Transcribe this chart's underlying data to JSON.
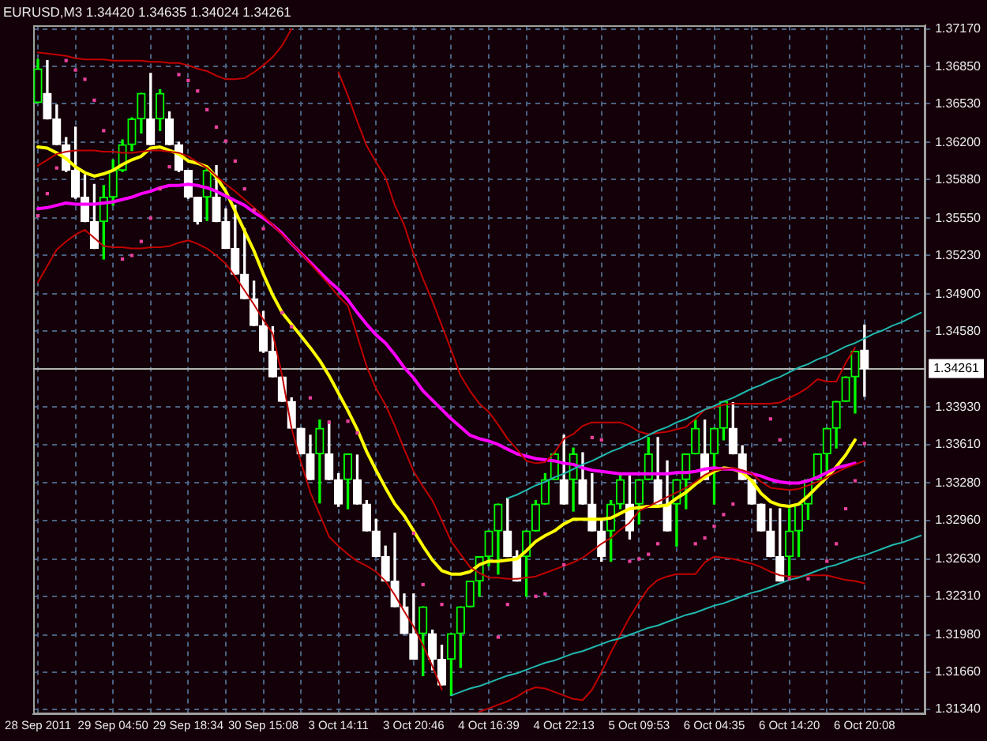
{
  "chart_data": {
    "type": "candlestick",
    "title": "EURUSD,M3 1.34420 1.34635 1.34024 1.34261",
    "categories": [
      "28 Sep 2011",
      null,
      null,
      null,
      null,
      null,
      null,
      null,
      "29 Sep 04:50",
      null,
      null,
      null,
      null,
      null,
      null,
      null,
      "29 Sep 18:34",
      null,
      null,
      null,
      null,
      null,
      null,
      null,
      "30 Sep 15:08",
      null,
      null,
      null,
      null,
      null,
      null,
      null,
      "3 Oct 14:11",
      null,
      null,
      null,
      null,
      null,
      null,
      null,
      "3 Oct 20:46",
      null,
      null,
      null,
      null,
      null,
      null,
      null,
      "4 Oct 16:39",
      null,
      null,
      null,
      null,
      null,
      null,
      null,
      "4 Oct 22:13",
      null,
      null,
      null,
      null,
      null,
      null,
      null,
      "5 Oct 09:53",
      null,
      null,
      null,
      null,
      null,
      null,
      null,
      "6 Oct 04:35",
      null,
      null,
      null,
      null,
      null,
      null,
      null,
      "6 Oct 14:20",
      null,
      null,
      null,
      null,
      null,
      null,
      null,
      "6 Oct 20:08",
      null,
      null,
      null,
      null,
      null,
      null
    ],
    "ohlc": [
      [
        1.3654,
        1.3691,
        1.3654,
        1.3683
      ],
      [
        1.3662,
        1.369,
        1.364,
        1.364
      ],
      [
        1.364,
        1.3652,
        1.3618,
        1.3618
      ],
      [
        1.3618,
        1.3624,
        1.3595,
        1.3596
      ],
      [
        1.3596,
        1.3633,
        1.3572,
        1.3573
      ],
      [
        1.3573,
        1.3592,
        1.3552,
        1.3552
      ],
      [
        1.3552,
        1.3584,
        1.3529,
        1.3529
      ],
      [
        1.3552,
        1.3583,
        1.352,
        1.3573
      ],
      [
        1.3573,
        1.3605,
        1.3566,
        1.3596
      ],
      [
        1.3596,
        1.3622,
        1.3595,
        1.3618
      ],
      [
        1.3618,
        1.3641,
        1.3613,
        1.364
      ],
      [
        1.364,
        1.3662,
        1.3628,
        1.3662
      ],
      [
        1.364,
        1.3679,
        1.3618,
        1.3618
      ],
      [
        1.364,
        1.3665,
        1.363,
        1.3662
      ],
      [
        1.364,
        1.3646,
        1.3618,
        1.3618
      ],
      [
        1.3618,
        1.362,
        1.3595,
        1.3596
      ],
      [
        1.3596,
        1.3596,
        1.3572,
        1.3573
      ],
      [
        1.3573,
        1.3573,
        1.355,
        1.3552
      ],
      [
        1.3573,
        1.3598,
        1.3553,
        1.3596
      ],
      [
        1.3573,
        1.36,
        1.3552,
        1.3552
      ],
      [
        1.3552,
        1.3563,
        1.3529,
        1.3529
      ],
      [
        1.3529,
        1.3566,
        1.3507,
        1.3507
      ],
      [
        1.3507,
        1.3546,
        1.3486,
        1.3486
      ],
      [
        1.3486,
        1.3501,
        1.3463,
        1.3463
      ],
      [
        1.3463,
        1.3475,
        1.344,
        1.3441
      ],
      [
        1.3441,
        1.3462,
        1.3419,
        1.3419
      ],
      [
        1.3419,
        1.3419,
        1.3398,
        1.3398
      ],
      [
        1.3398,
        1.3401,
        1.3375,
        1.3375
      ],
      [
        1.3375,
        1.3375,
        1.3353,
        1.3353
      ],
      [
        1.3353,
        1.3369,
        1.3331,
        1.3331
      ],
      [
        1.3353,
        1.3382,
        1.3311,
        1.3375
      ],
      [
        1.3353,
        1.3381,
        1.3331,
        1.3331
      ],
      [
        1.3331,
        1.3336,
        1.3308,
        1.331
      ],
      [
        1.3331,
        1.3353,
        1.3306,
        1.3353
      ],
      [
        1.3331,
        1.3352,
        1.331,
        1.331
      ],
      [
        1.331,
        1.3313,
        1.3287,
        1.3287
      ],
      [
        1.3287,
        1.3297,
        1.3265,
        1.3265
      ],
      [
        1.3265,
        1.3274,
        1.3244,
        1.3244
      ],
      [
        1.3244,
        1.3285,
        1.3222,
        1.3222
      ],
      [
        1.3222,
        1.3233,
        1.3199,
        1.3199
      ],
      [
        1.3199,
        1.3233,
        1.3177,
        1.3177
      ],
      [
        1.3199,
        1.3222,
        1.3163,
        1.3222
      ],
      [
        1.3199,
        1.3202,
        1.3168,
        1.3177
      ],
      [
        1.3177,
        1.3189,
        1.3155,
        1.3155
      ],
      [
        1.3177,
        1.3199,
        1.3146,
        1.3199
      ],
      [
        1.3199,
        1.3222,
        1.317,
        1.3222
      ],
      [
        1.3222,
        1.3244,
        1.3222,
        1.3244
      ],
      [
        1.3244,
        1.3265,
        1.3231,
        1.3265
      ],
      [
        1.3265,
        1.3287,
        1.3257,
        1.3287
      ],
      [
        1.3287,
        1.331,
        1.325,
        1.331
      ],
      [
        1.3287,
        1.3315,
        1.3265,
        1.3265
      ],
      [
        1.3265,
        1.327,
        1.3244,
        1.3244
      ],
      [
        1.3265,
        1.3287,
        1.3231,
        1.3287
      ],
      [
        1.3287,
        1.3313,
        1.3287,
        1.331
      ],
      [
        1.331,
        1.3336,
        1.331,
        1.3331
      ],
      [
        1.3331,
        1.3354,
        1.3331,
        1.3353
      ],
      [
        1.3331,
        1.3369,
        1.331,
        1.331
      ],
      [
        1.3331,
        1.3358,
        1.3304,
        1.3353
      ],
      [
        1.3331,
        1.3354,
        1.331,
        1.331
      ],
      [
        1.331,
        1.3336,
        1.3287,
        1.3287
      ],
      [
        1.3287,
        1.3297,
        1.3261,
        1.3265
      ],
      [
        1.3287,
        1.3313,
        1.3261,
        1.331
      ],
      [
        1.331,
        1.3336,
        1.3306,
        1.3331
      ],
      [
        1.331,
        1.3334,
        1.328,
        1.3287
      ],
      [
        1.331,
        1.3331,
        1.3293,
        1.3331
      ],
      [
        1.3331,
        1.3367,
        1.3331,
        1.3353
      ],
      [
        1.3331,
        1.3367,
        1.331,
        1.331
      ],
      [
        1.331,
        1.3347,
        1.3287,
        1.3287
      ],
      [
        1.331,
        1.3331,
        1.3274,
        1.3331
      ],
      [
        1.3331,
        1.3353,
        1.3306,
        1.3353
      ],
      [
        1.3353,
        1.3382,
        1.3353,
        1.3375
      ],
      [
        1.3353,
        1.3382,
        1.3331,
        1.3331
      ],
      [
        1.3353,
        1.3375,
        1.331,
        1.3375
      ],
      [
        1.3375,
        1.3398,
        1.3365,
        1.3398
      ],
      [
        1.3375,
        1.3397,
        1.3353,
        1.3353
      ],
      [
        1.3353,
        1.336,
        1.3331,
        1.3331
      ],
      [
        1.3331,
        1.3331,
        1.331,
        1.331
      ],
      [
        1.331,
        1.331,
        1.3287,
        1.3287
      ],
      [
        1.3287,
        1.3306,
        1.3265,
        1.3265
      ],
      [
        1.3265,
        1.3306,
        1.3244,
        1.3244
      ],
      [
        1.3265,
        1.3306,
        1.3246,
        1.3287
      ],
      [
        1.3287,
        1.331,
        1.3265,
        1.331
      ],
      [
        1.331,
        1.3331,
        1.3297,
        1.3331
      ],
      [
        1.3331,
        1.3353,
        1.3331,
        1.3353
      ],
      [
        1.3353,
        1.3375,
        1.3336,
        1.3375
      ],
      [
        1.3375,
        1.3398,
        1.3358,
        1.3398
      ],
      [
        1.3398,
        1.3419,
        1.3398,
        1.3419
      ],
      [
        1.3419,
        1.3441,
        1.3388,
        1.3441
      ],
      [
        1.3442,
        1.34635,
        1.34024,
        1.34261
      ],
      null,
      null,
      null,
      null,
      null,
      null
    ],
    "colors": [
      "#00ff00",
      "#ffffff",
      "#ffffff",
      "#ffffff",
      "#ffffff",
      "#ffffff",
      "#ffffff",
      "#00ff00",
      "#00ff00",
      "#00ff00",
      "#00ff00",
      "#00ff00",
      "#ffffff",
      "#00ff00",
      "#ffffff",
      "#ffffff",
      "#ffffff",
      "#ffffff",
      "#00ff00",
      "#ffffff",
      "#ffffff",
      "#ffffff",
      "#ffffff",
      "#ffffff",
      "#ffffff",
      "#ffffff",
      "#ffffff",
      "#ffffff",
      "#ffffff",
      "#ffffff",
      "#00ff00",
      "#ffffff",
      "#ffffff",
      "#00ff00",
      "#ffffff",
      "#ffffff",
      "#ffffff",
      "#ffffff",
      "#ffffff",
      "#ffffff",
      "#ffffff",
      "#00ff00",
      "#ffffff",
      "#ffffff",
      "#00ff00",
      "#00ff00",
      "#00ff00",
      "#00ff00",
      "#00ff00",
      "#00ff00",
      "#ffffff",
      "#ffffff",
      "#00ff00",
      "#00ff00",
      "#00ff00",
      "#00ff00",
      "#ffffff",
      "#00ff00",
      "#ffffff",
      "#ffffff",
      "#ffffff",
      "#00ff00",
      "#00ff00",
      "#ffffff",
      "#00ff00",
      "#00ff00",
      "#ffffff",
      "#ffffff",
      "#00ff00",
      "#00ff00",
      "#00ff00",
      "#ffffff",
      "#00ff00",
      "#00ff00",
      "#ffffff",
      "#ffffff",
      "#ffffff",
      "#ffffff",
      "#ffffff",
      "#ffffff",
      "#00ff00",
      "#00ff00",
      "#00ff00",
      "#00ff00",
      "#00ff00",
      "#00ff00",
      "#00ff00",
      "#00ff00",
      "#ffffff",
      null,
      null,
      null,
      null,
      null,
      null
    ],
    "series": [
      {
        "type": "line",
        "color": "#ffff00",
        "values": [
          1.3616,
          1.3615,
          1.3611,
          1.3606,
          1.3599,
          1.3594,
          1.3591,
          1.3593,
          1.3596,
          1.3601,
          1.3605,
          1.3608,
          1.3615,
          1.3616,
          1.3613,
          1.361,
          1.3604,
          1.3602,
          1.3599,
          1.359,
          1.3578,
          1.3561,
          1.3544,
          1.3527,
          1.3507,
          1.3489,
          1.3474,
          1.3464,
          1.3454,
          1.3444,
          1.3433,
          1.342,
          1.3405,
          1.339,
          1.3374,
          1.3355,
          1.3339,
          1.3324,
          1.331,
          1.33,
          1.3287,
          1.3274,
          1.3262,
          1.3253,
          1.325,
          1.325,
          1.3252,
          1.3258,
          1.3261,
          1.3261,
          1.3262,
          1.3263,
          1.327,
          1.3278,
          1.3283,
          1.3287,
          1.3293,
          1.3297,
          1.3297,
          1.3297,
          1.3297,
          1.3298,
          1.3302,
          1.3306,
          1.3307,
          1.3308,
          1.3308,
          1.3309,
          1.3315,
          1.332,
          1.3327,
          1.3333,
          1.3338,
          1.3341,
          1.334,
          1.3337,
          1.333,
          1.3319,
          1.3312,
          1.3309,
          1.3308,
          1.331,
          1.3317,
          1.3325,
          1.3333,
          1.3342,
          1.3352,
          1.3365,
          null,
          null,
          null,
          null,
          null,
          null,
          null
        ]
      },
      {
        "type": "line",
        "color": "#ff00ff",
        "values": [
          1.3563,
          1.3564,
          1.3566,
          1.3568,
          1.3567,
          1.3567,
          1.3567,
          1.3568,
          1.3569,
          1.3571,
          1.3573,
          1.3576,
          1.3578,
          1.3581,
          1.3583,
          1.3583,
          1.3584,
          1.3583,
          1.3581,
          1.3578,
          1.3574,
          1.357,
          1.3566,
          1.356,
          1.3555,
          1.3549,
          1.3542,
          1.3533,
          1.3525,
          1.3517,
          1.3509,
          1.3501,
          1.3494,
          1.3485,
          1.3474,
          1.3464,
          1.3455,
          1.3448,
          1.3438,
          1.3427,
          1.3418,
          1.3407,
          1.3399,
          1.3391,
          1.3383,
          1.3376,
          1.3369,
          1.3366,
          1.3364,
          1.3361,
          1.3357,
          1.3353,
          1.3351,
          1.3349,
          1.3348,
          1.3347,
          1.3345,
          1.3344,
          1.3341,
          1.3339,
          1.3338,
          1.3337,
          1.3336,
          1.3336,
          1.3336,
          1.3336,
          1.3336,
          1.3336,
          1.3337,
          1.3337,
          1.3338,
          1.334,
          1.3341,
          1.334,
          1.334,
          1.3338,
          1.3336,
          1.3334,
          1.3331,
          1.3329,
          1.3328,
          1.3328,
          1.333,
          1.3333,
          1.3337,
          1.3341,
          1.3343,
          1.3345,
          null,
          null,
          null,
          null,
          null,
          null,
          null
        ]
      },
      {
        "type": "line",
        "color": "#c00000",
        "values": [
          1.3697,
          1.3696,
          1.3695,
          1.3694,
          1.3692,
          1.3691,
          1.3691,
          1.3691,
          1.369,
          1.369,
          1.369,
          1.369,
          1.3689,
          1.3689,
          1.3688,
          1.3688,
          1.3686,
          1.3683,
          1.3681,
          1.3677,
          1.3674,
          1.3674,
          1.3675,
          1.368,
          1.3686,
          1.3693,
          1.3703,
          1.3717,
          null,
          null,
          null,
          null,
          1.368,
          1.366,
          1.3638,
          1.3617,
          1.3603,
          1.359,
          1.3566,
          1.3549,
          1.3524,
          1.3503,
          1.3484,
          1.3463,
          1.3442,
          1.342,
          1.3407,
          1.3396,
          1.3389,
          1.3378,
          1.3366,
          1.3357,
          1.3347,
          1.3345,
          1.3346,
          1.3354,
          1.3366,
          1.337,
          1.3377,
          1.338,
          1.338,
          1.338,
          1.338,
          1.3377,
          1.3372,
          1.337,
          1.3371,
          1.3372,
          1.3374,
          1.3376,
          1.3383,
          1.3391,
          1.3393,
          1.3395,
          1.3396,
          1.3396,
          1.3396,
          1.3396,
          1.3396,
          1.3397,
          1.3401,
          1.3405,
          1.341,
          1.3417,
          1.3415,
          1.3415,
          1.3431,
          1.3444,
          null,
          null,
          null,
          null,
          null,
          null,
          null
        ]
      },
      {
        "type": "line",
        "color": "#c00000",
        "values": [
          1.36,
          1.3605,
          1.361,
          1.3612,
          1.3613,
          1.3613,
          1.3613,
          1.3612,
          1.3612,
          1.3611,
          1.3611,
          1.3612,
          1.3613,
          1.3613,
          1.3612,
          1.3611,
          1.3608,
          1.3603,
          1.3598,
          1.3591,
          1.3584,
          1.3578,
          1.3571,
          1.3564,
          1.3557,
          1.3549,
          1.3541,
          1.3533,
          1.3525,
          1.3516,
          1.3507,
          1.3498,
          1.3488,
          1.348,
          1.3454,
          1.3428,
          1.3409,
          1.3395,
          1.3377,
          1.3357,
          1.3338,
          1.3325,
          1.3313,
          1.3296,
          1.3278,
          1.3267,
          1.3256,
          1.3251,
          1.3247,
          1.3247,
          1.3246,
          1.3246,
          1.3247,
          1.3248,
          1.3251,
          1.3254,
          1.3257,
          1.326,
          1.3264,
          1.327,
          1.3276,
          1.3281,
          1.3288,
          1.3294,
          1.3304,
          1.3308,
          1.3312,
          1.3316,
          1.332,
          1.3324,
          1.3329,
          1.3335,
          1.3339,
          1.334,
          1.3341,
          1.3339,
          1.3336,
          1.3329,
          1.3324,
          1.3323,
          1.3322,
          1.3323,
          1.3326,
          1.3329,
          1.3333,
          1.3337,
          1.3341,
          1.3344,
          1.3347,
          null,
          null,
          null,
          null,
          null,
          null
        ]
      },
      {
        "type": "line",
        "color": "#c00000",
        "values": [
          1.35,
          1.3514,
          1.3528,
          1.3535,
          1.3541,
          1.3545,
          1.3538,
          1.3531,
          1.353,
          1.353,
          1.3529,
          1.3529,
          1.353,
          1.353,
          1.3531,
          1.3534,
          1.3536,
          1.3533,
          1.3529,
          1.3523,
          1.3516,
          1.3505,
          1.3493,
          1.3481,
          1.3468,
          1.3456,
          1.342,
          1.3375,
          1.3346,
          1.332,
          1.3301,
          1.3282,
          1.3274,
          1.3267,
          1.3261,
          1.3257,
          1.3252,
          1.3244,
          1.3232,
          1.3218,
          1.3205,
          1.3189,
          1.3171,
          1.3151,
          null,
          null,
          null,
          1.3132,
          1.3135,
          1.3138,
          1.3141,
          1.3145,
          1.315,
          1.3153,
          1.3152,
          1.3149,
          1.3146,
          1.3143,
          1.3142,
          1.3151,
          1.3166,
          1.3183,
          1.3198,
          1.3213,
          1.3226,
          1.3238,
          1.3245,
          1.3248,
          1.325,
          1.325,
          1.325,
          1.326,
          1.3265,
          1.3264,
          1.3263,
          1.3261,
          1.3259,
          1.3256,
          1.3252,
          1.3249,
          1.3248,
          1.3248,
          1.3249,
          1.3249,
          1.3249,
          1.3247,
          1.3245,
          1.3244,
          1.3242,
          null,
          null,
          null,
          null,
          null,
          null
        ]
      },
      {
        "type": "scatter",
        "color": "#e8409c",
        "marker": "square",
        "values": [
          1.3557,
          1.3576,
          1.3598,
          1.369,
          1.3682,
          1.3674,
          1.3656,
          1.363,
          null,
          1.352,
          1.3523,
          1.3535,
          1.3555,
          1.358,
          1.3599,
          1.3678,
          1.3673,
          1.3664,
          1.3648,
          1.3633,
          1.3621,
          1.3604,
          1.358,
          1.3562,
          1.3546,
          null,
          1.3474,
          1.3462,
          null,
          1.3401,
          null,
          1.338,
          null,
          1.3381,
          1.3371,
          null,
          null,
          null,
          null,
          null,
          1.3285,
          1.3241,
          null,
          1.3224,
          null,
          null,
          null,
          null,
          null,
          1.3196,
          1.3224,
          null,
          null,
          1.3231,
          1.3233,
          null,
          1.3258,
          null,
          null,
          1.3367,
          1.3365,
          null,
          null,
          1.3261,
          1.3263,
          1.3267,
          1.3276,
          null,
          null,
          null,
          1.3276,
          1.3281,
          1.3291,
          1.3301,
          1.331,
          null,
          null,
          null,
          1.3383,
          1.3365,
          1.3246,
          null,
          1.3246,
          null,
          1.3261,
          1.3276,
          1.3306,
          1.333,
          1.3362,
          null,
          null,
          null,
          null,
          null,
          null
        ]
      },
      {
        "type": "line",
        "color": "#20b8b0",
        "values": [
          null,
          null,
          null,
          null,
          null,
          null,
          null,
          null,
          null,
          null,
          null,
          null,
          null,
          null,
          null,
          null,
          null,
          null,
          null,
          null,
          null,
          null,
          null,
          null,
          null,
          null,
          null,
          null,
          null,
          null,
          null,
          null,
          null,
          null,
          null,
          null,
          null,
          null,
          null,
          null,
          null,
          null,
          null,
          null,
          null,
          null,
          null,
          null,
          null,
          null,
          1.3315,
          1.3318,
          1.3322,
          1.3326,
          1.3329,
          1.3333,
          1.3336,
          1.334,
          1.3344,
          1.3347,
          1.3351,
          1.3355,
          1.3358,
          1.3362,
          1.3365,
          1.3369,
          1.3373,
          1.3376,
          1.338,
          1.3383,
          1.3387,
          1.3391,
          1.3394,
          1.3398,
          1.3401,
          1.3405,
          1.3409,
          1.3412,
          1.3416,
          1.3419,
          1.3423,
          1.3427,
          1.343,
          1.3434,
          1.3437,
          1.3441,
          1.3445,
          1.3448,
          1.3452,
          1.3456,
          1.3459,
          1.3463,
          1.3466,
          1.347,
          1.3474
        ]
      },
      {
        "type": "line",
        "color": "#20b8b0",
        "values": [
          null,
          null,
          null,
          null,
          null,
          null,
          null,
          null,
          null,
          null,
          null,
          null,
          null,
          null,
          null,
          null,
          null,
          null,
          null,
          null,
          null,
          null,
          null,
          null,
          null,
          null,
          null,
          null,
          null,
          null,
          null,
          null,
          null,
          null,
          null,
          null,
          null,
          null,
          null,
          null,
          null,
          null,
          null,
          null,
          1.3146,
          1.3149,
          1.3152,
          1.3154,
          1.3157,
          1.316,
          1.3163,
          1.3165,
          1.3168,
          1.3171,
          1.3174,
          1.3176,
          1.3179,
          1.3182,
          1.3184,
          1.3187,
          1.319,
          1.3193,
          1.3195,
          1.3198,
          1.3201,
          1.3204,
          1.3206,
          1.3209,
          1.3212,
          1.3215,
          1.3217,
          1.322,
          1.3223,
          1.3225,
          1.3228,
          1.3231,
          1.3234,
          1.3236,
          1.3239,
          1.3242,
          1.3245,
          1.3247,
          1.325,
          1.3253,
          1.3256,
          1.3258,
          1.3261,
          1.3264,
          1.3266,
          1.3269,
          1.3272,
          1.3275,
          1.3277,
          1.328,
          1.3283
        ]
      }
    ],
    "ylim": [
      1.313,
      1.372
    ],
    "yticks": [
      {
        "value": 1.3717,
        "label": "1.37170"
      },
      {
        "value": 1.3685,
        "label": "1.36850"
      },
      {
        "value": 1.3653,
        "label": "1.36530"
      },
      {
        "value": 1.362,
        "label": "1.36200"
      },
      {
        "value": 1.3588,
        "label": "1.35880"
      },
      {
        "value": 1.3555,
        "label": "1.35550"
      },
      {
        "value": 1.3523,
        "label": "1.35230"
      },
      {
        "value": 1.349,
        "label": "1.34900"
      },
      {
        "value": 1.3458,
        "label": "1.34580"
      },
      {
        "value": 1.3393,
        "label": "1.33930"
      },
      {
        "value": 1.3361,
        "label": "1.33610"
      },
      {
        "value": 1.3328,
        "label": "1.33280"
      },
      {
        "value": 1.3296,
        "label": "1.32960"
      },
      {
        "value": 1.3263,
        "label": "1.32630"
      },
      {
        "value": 1.3231,
        "label": "1.32310"
      },
      {
        "value": 1.3198,
        "label": "1.31980"
      },
      {
        "value": 1.3166,
        "label": "1.31660"
      },
      {
        "value": 1.3134,
        "label": "1.31340"
      }
    ],
    "grid": true,
    "ref_lines": [
      {
        "axis": "y",
        "value": 1.34261,
        "label": "1.34261",
        "color": "#b4b4b4"
      }
    ]
  }
}
